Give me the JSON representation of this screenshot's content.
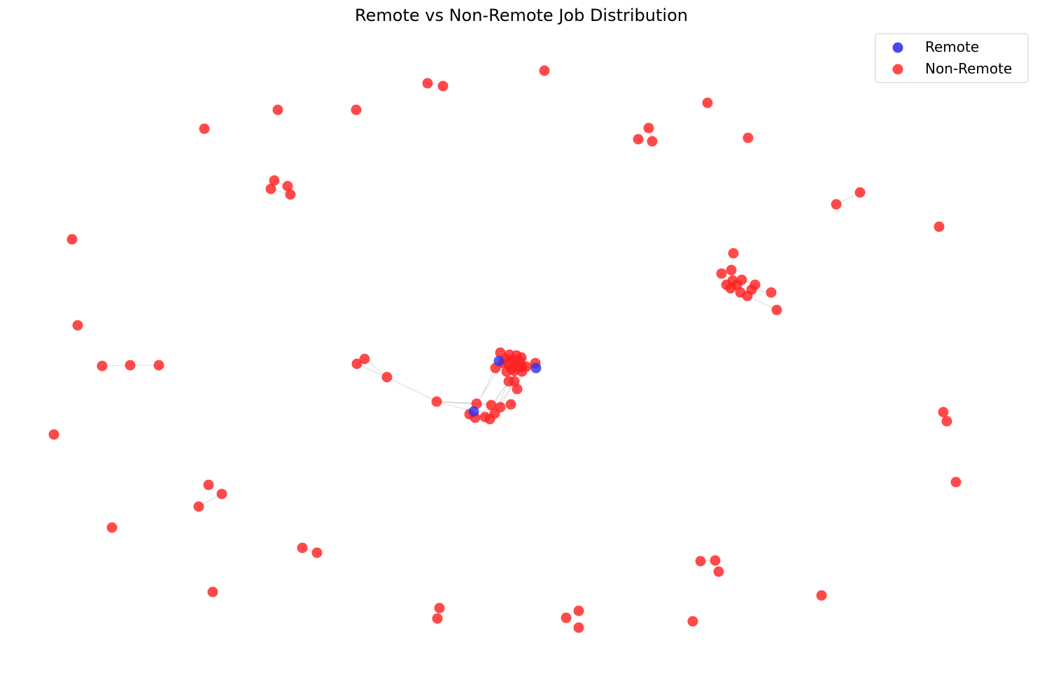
{
  "title": "Remote vs Non-Remote Job Distribution",
  "legend": {
    "placement": "top-right",
    "items": [
      {
        "label": "Remote",
        "color": "#3333ee"
      },
      {
        "label": "Non-Remote",
        "color": "#ff2222"
      }
    ]
  },
  "styles": {
    "remote_color": "#3333ee",
    "nonremote_color": "#ff2222",
    "edge_color": "#cccccc"
  },
  "chart_data": {
    "type": "scatter",
    "axes_visible": false,
    "grid": false,
    "series": [
      {
        "name": "Remote",
        "points": [
          [
            713,
            516
          ],
          [
            766,
            526
          ],
          [
            677,
            588
          ]
        ]
      },
      {
        "name": "Non-Remote",
        "points": [
          [
            611,
            119
          ],
          [
            633,
            123
          ],
          [
            778,
            101
          ],
          [
            397,
            157
          ],
          [
            509,
            157
          ],
          [
            292,
            184
          ],
          [
            1011,
            147
          ],
          [
            927,
            183
          ],
          [
            912,
            199
          ],
          [
            932,
            202
          ],
          [
            1069,
            197
          ],
          [
            392,
            258
          ],
          [
            411,
            266
          ],
          [
            387,
            270
          ],
          [
            415,
            278
          ],
          [
            1195,
            292
          ],
          [
            1229,
            275
          ],
          [
            1342,
            324
          ],
          [
            103,
            342
          ],
          [
            1048,
            362
          ],
          [
            1045,
            386
          ],
          [
            1031,
            391
          ],
          [
            1047,
            401
          ],
          [
            1060,
            400
          ],
          [
            1038,
            407
          ],
          [
            1053,
            407
          ],
          [
            1079,
            407
          ],
          [
            1044,
            412
          ],
          [
            1074,
            414
          ],
          [
            1058,
            418
          ],
          [
            1102,
            418
          ],
          [
            1068,
            423
          ],
          [
            1110,
            443
          ],
          [
            111,
            465
          ],
          [
            146,
            523
          ],
          [
            186,
            522
          ],
          [
            227,
            522
          ],
          [
            510,
            520
          ],
          [
            521,
            513
          ],
          [
            553,
            539
          ],
          [
            624,
            574
          ],
          [
            715,
            504
          ],
          [
            728,
            507
          ],
          [
            738,
            508
          ],
          [
            745,
            511
          ],
          [
            722,
            513
          ],
          [
            733,
            514
          ],
          [
            743,
            516
          ],
          [
            719,
            519
          ],
          [
            727,
            521
          ],
          [
            737,
            520
          ],
          [
            746,
            524
          ],
          [
            708,
            526
          ],
          [
            731,
            527
          ],
          [
            740,
            525
          ],
          [
            752,
            524
          ],
          [
            765,
            519
          ],
          [
            724,
            531
          ],
          [
            735,
            530
          ],
          [
            746,
            531
          ],
          [
            727,
            545
          ],
          [
            735,
            545
          ],
          [
            739,
            556
          ],
          [
            681,
            577
          ],
          [
            702,
            579
          ],
          [
            715,
            582
          ],
          [
            730,
            578
          ],
          [
            671,
            592
          ],
          [
            679,
            597
          ],
          [
            693,
            596
          ],
          [
            707,
            591
          ],
          [
            700,
            599
          ],
          [
            77,
            621
          ],
          [
            1348,
            589
          ],
          [
            1353,
            602
          ],
          [
            1366,
            689
          ],
          [
            298,
            693
          ],
          [
            317,
            706
          ],
          [
            284,
            724
          ],
          [
            160,
            754
          ],
          [
            432,
            783
          ],
          [
            453,
            790
          ],
          [
            1001,
            802
          ],
          [
            1022,
            801
          ],
          [
            1027,
            817
          ],
          [
            304,
            846
          ],
          [
            628,
            869
          ],
          [
            625,
            884
          ],
          [
            809,
            883
          ],
          [
            827,
            873
          ],
          [
            827,
            897
          ],
          [
            990,
            888
          ],
          [
            1174,
            851
          ]
        ]
      }
    ],
    "edges": [
      [
        [
          611,
          119
        ],
        [
          633,
          123
        ]
      ],
      [
        [
          392,
          258
        ],
        [
          411,
          266
        ]
      ],
      [
        [
          392,
          258
        ],
        [
          387,
          270
        ]
      ],
      [
        [
          411,
          266
        ],
        [
          415,
          278
        ]
      ],
      [
        [
          387,
          270
        ],
        [
          415,
          278
        ]
      ],
      [
        [
          1195,
          292
        ],
        [
          1229,
          275
        ]
      ],
      [
        [
          146,
          523
        ],
        [
          186,
          522
        ]
      ],
      [
        [
          186,
          522
        ],
        [
          227,
          522
        ]
      ],
      [
        [
          510,
          520
        ],
        [
          553,
          539
        ]
      ],
      [
        [
          521,
          513
        ],
        [
          553,
          539
        ]
      ],
      [
        [
          553,
          539
        ],
        [
          624,
          574
        ]
      ],
      [
        [
          510,
          520
        ],
        [
          521,
          513
        ]
      ],
      [
        [
          624,
          574
        ],
        [
          677,
          588
        ]
      ],
      [
        [
          624,
          574
        ],
        [
          702,
          579
        ]
      ],
      [
        [
          624,
          574
        ],
        [
          730,
          578
        ]
      ],
      [
        [
          624,
          574
        ],
        [
          681,
          577
        ]
      ],
      [
        [
          677,
          588
        ],
        [
          713,
          516
        ]
      ],
      [
        [
          681,
          577
        ],
        [
          722,
          513
        ]
      ],
      [
        [
          702,
          579
        ],
        [
          727,
          545
        ]
      ],
      [
        [
          715,
          582
        ],
        [
          735,
          545
        ]
      ],
      [
        [
          730,
          578
        ],
        [
          739,
          556
        ]
      ],
      [
        [
          707,
          591
        ],
        [
          727,
          545
        ]
      ],
      [
        [
          693,
          596
        ],
        [
          727,
          545
        ]
      ],
      [
        [
          700,
          599
        ],
        [
          735,
          545
        ]
      ],
      [
        [
          671,
          592
        ],
        [
          715,
          582
        ]
      ],
      [
        [
          679,
          597
        ],
        [
          707,
          591
        ]
      ],
      [
        [
          727,
          545
        ],
        [
          724,
          531
        ]
      ],
      [
        [
          735,
          545
        ],
        [
          735,
          530
        ]
      ],
      [
        [
          766,
          526
        ],
        [
          746,
          524
        ]
      ],
      [
        [
          766,
          526
        ],
        [
          752,
          524
        ]
      ],
      [
        [
          739,
          556
        ],
        [
          746,
          531
        ]
      ],
      [
        [
          1048,
          362
        ],
        [
          1045,
          386
        ]
      ],
      [
        [
          1031,
          391
        ],
        [
          1047,
          401
        ]
      ],
      [
        [
          1060,
          400
        ],
        [
          1079,
          407
        ]
      ],
      [
        [
          1068,
          423
        ],
        [
          1110,
          443
        ]
      ],
      [
        [
          1074,
          414
        ],
        [
          1102,
          418
        ]
      ],
      [
        [
          1038,
          407
        ],
        [
          1058,
          418
        ]
      ],
      [
        [
          1044,
          412
        ],
        [
          1053,
          407
        ]
      ],
      [
        [
          298,
          693
        ],
        [
          317,
          706
        ]
      ],
      [
        [
          317,
          706
        ],
        [
          284,
          724
        ]
      ],
      [
        [
          432,
          783
        ],
        [
          453,
          790
        ]
      ],
      [
        [
          1001,
          802
        ],
        [
          1022,
          801
        ]
      ],
      [
        [
          1022,
          801
        ],
        [
          1027,
          817
        ]
      ],
      [
        [
          628,
          869
        ],
        [
          625,
          884
        ]
      ],
      [
        [
          809,
          883
        ],
        [
          827,
          873
        ]
      ],
      [
        [
          927,
          183
        ],
        [
          912,
          199
        ]
      ],
      [
        [
          927,
          183
        ],
        [
          932,
          202
        ]
      ]
    ]
  }
}
